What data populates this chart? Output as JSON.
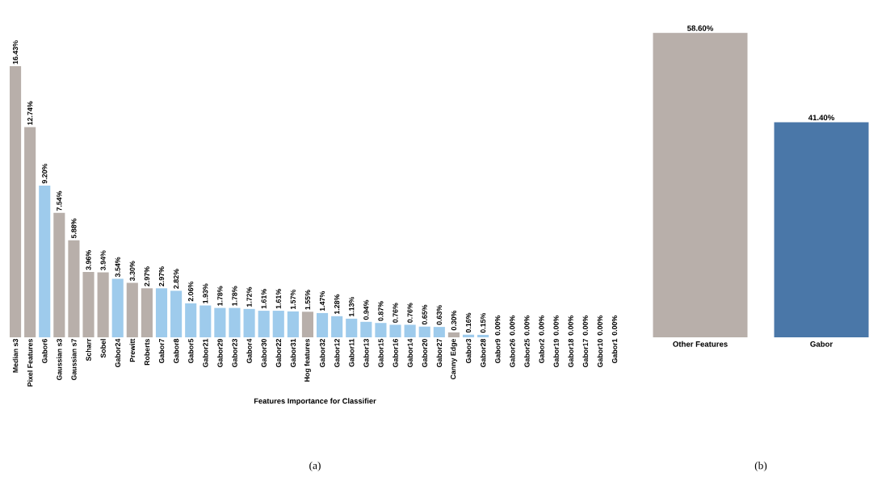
{
  "chart_data": [
    {
      "type": "bar",
      "xlabel": "Features Importance for Classifier",
      "categories": [
        "Median s3",
        "Pixel Features",
        "Gabor6",
        "Gaussian s3",
        "Gaussian s7",
        "Scharr",
        "Sobel",
        "Gabor24",
        "Prewitt",
        "Roberts",
        "Gabor7",
        "Gabor8",
        "Gabor5",
        "Gabor21",
        "Gabor29",
        "Gabor23",
        "Gabor4",
        "Gabor30",
        "Gabor22",
        "Gabor31",
        "Hog features",
        "Gabor32",
        "Gabor12",
        "Gabor11",
        "Gabor13",
        "Gabor15",
        "Gabor16",
        "Gabor14",
        "Gabor20",
        "Gabor27",
        "Canny Edge",
        "Gabor3",
        "Gabor28",
        "Gabor9",
        "Gabor26",
        "Gabor25",
        "Gabor2",
        "Gabor19",
        "Gabor18",
        "Gabor17",
        "Gabor10",
        "Gabor1"
      ],
      "values": [
        16.43,
        12.74,
        9.2,
        7.54,
        5.88,
        3.96,
        3.94,
        3.54,
        3.3,
        2.97,
        2.97,
        2.82,
        2.06,
        1.93,
        1.78,
        1.78,
        1.72,
        1.61,
        1.61,
        1.57,
        1.55,
        1.47,
        1.28,
        1.13,
        0.94,
        0.87,
        0.76,
        0.76,
        0.65,
        0.63,
        0.3,
        0.16,
        0.15,
        0,
        0,
        0,
        0,
        0,
        0,
        0,
        0,
        0
      ],
      "value_labels": [
        "16.43%",
        "12.74%",
        "9.20%",
        "7.54%",
        "5.88%",
        "3.96%",
        "3.94%",
        "3.54%",
        "3.30%",
        "2.97%",
        "2.97%",
        "2.82%",
        "2.06%",
        "1.93%",
        "1.78%",
        "1.78%",
        "1.72%",
        "1.61%",
        "1.61%",
        "1.57%",
        "1.55%",
        "1.47%",
        "1.28%",
        "1.13%",
        "0.94%",
        "0.87%",
        "0.76%",
        "0.76%",
        "0.65%",
        "0.63%",
        "0.30%",
        "0.16%",
        "0.15%",
        "0.00%",
        "0.00%",
        "0.00%",
        "0.00%",
        "0.00%",
        "0.00%",
        "0.00%",
        "0.00%",
        "0.00%"
      ],
      "colors": [
        "#b8afaa",
        "#b8afaa",
        "#9ecbec",
        "#b8afaa",
        "#b8afaa",
        "#b8afaa",
        "#b8afaa",
        "#9ecbec",
        "#b8afaa",
        "#b8afaa",
        "#9ecbec",
        "#9ecbec",
        "#9ecbec",
        "#9ecbec",
        "#9ecbec",
        "#9ecbec",
        "#9ecbec",
        "#9ecbec",
        "#9ecbec",
        "#9ecbec",
        "#b8afaa",
        "#9ecbec",
        "#9ecbec",
        "#9ecbec",
        "#9ecbec",
        "#9ecbec",
        "#9ecbec",
        "#9ecbec",
        "#9ecbec",
        "#9ecbec",
        "#b8afaa",
        "#9ecbec",
        "#9ecbec",
        "#9ecbec",
        "#9ecbec",
        "#9ecbec",
        "#9ecbec",
        "#9ecbec",
        "#9ecbec",
        "#9ecbec",
        "#9ecbec",
        "#9ecbec"
      ],
      "annotations": [
        "(a)"
      ]
    },
    {
      "type": "bar",
      "categories": [
        "Other Features",
        "Gabor"
      ],
      "values": [
        58.6,
        41.4
      ],
      "value_labels": [
        "58.60%",
        "41.40%"
      ],
      "colors": [
        "#b8afaa",
        "#4a77a8"
      ],
      "annotations": [
        "(b)"
      ]
    }
  ]
}
